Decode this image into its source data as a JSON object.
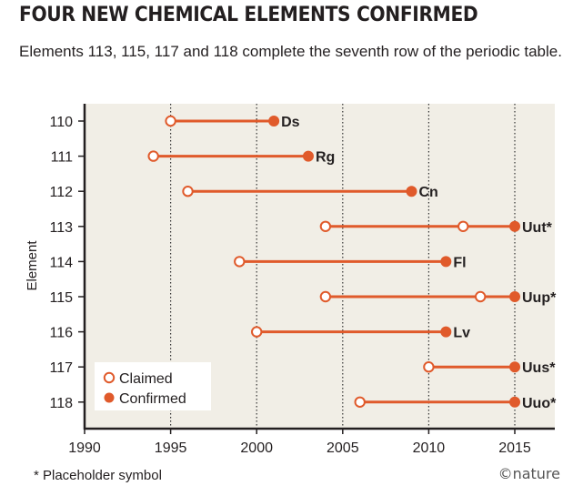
{
  "header": {
    "title": "FOUR NEW CHEMICAL ELEMENTS CONFIRMED",
    "subtitle": "Elements 113, 115, 117 and 118 complete the seventh row of the periodic table."
  },
  "footer": {
    "footnote": "* Placeholder symbol",
    "credit": "©nature"
  },
  "chart_data": {
    "type": "scatter",
    "subtype": "dumbbell",
    "title": "FOUR NEW CHEMICAL ELEMENTS CONFIRMED",
    "subtitle": "Elements 113, 115, 117 and 118 complete the seventh row of the periodic table.",
    "xlabel": "",
    "ylabel": "Element",
    "xlim": [
      1990,
      2015
    ],
    "xticks": [
      "1990",
      "1995",
      "2000",
      "2005",
      "2010",
      "2015"
    ],
    "grid": "vertical dotted lines at 1995, 2000, 2005, 2010, 2015",
    "legend": {
      "placement": "bottom-left",
      "entries": [
        {
          "label": "Claimed",
          "marker": "open-circle"
        },
        {
          "label": "Confirmed",
          "marker": "filled-circle"
        }
      ]
    },
    "colors": {
      "accent": "#e05a2b",
      "plot_background": "#f1eee6",
      "grid": "#333333",
      "text": "#231f20"
    },
    "elements": [
      {
        "element": "110",
        "claimed": [
          1995
        ],
        "confirmed": 2001,
        "symbol": "Ds"
      },
      {
        "element": "111",
        "claimed": [
          1994
        ],
        "confirmed": 2003,
        "symbol": "Rg"
      },
      {
        "element": "112",
        "claimed": [
          1996
        ],
        "confirmed": 2009,
        "symbol": "Cn"
      },
      {
        "element": "113",
        "claimed": [
          2004,
          2012
        ],
        "confirmed": 2015,
        "symbol": "Uut*"
      },
      {
        "element": "114",
        "claimed": [
          1999
        ],
        "confirmed": 2011,
        "symbol": "Fl"
      },
      {
        "element": "115",
        "claimed": [
          2004,
          2013
        ],
        "confirmed": 2015,
        "symbol": "Uup*"
      },
      {
        "element": "116",
        "claimed": [
          2000
        ],
        "confirmed": 2011,
        "symbol": "Lv"
      },
      {
        "element": "117",
        "claimed": [
          2010
        ],
        "confirmed": 2015,
        "symbol": "Uus*"
      },
      {
        "element": "118",
        "claimed": [
          2006
        ],
        "confirmed": 2015,
        "symbol": "Uuo*"
      }
    ]
  }
}
